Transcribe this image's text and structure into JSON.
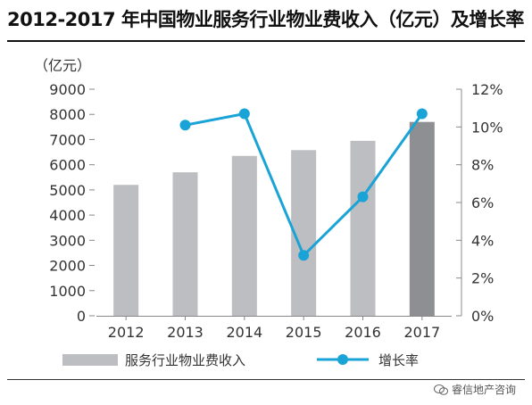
{
  "title": "2012-2017 年中国物业服务行业物业费收入（亿元）及增长率",
  "watermark": "睿信地产咨询",
  "chart_data": {
    "type": "bar",
    "categories": [
      "2012",
      "2013",
      "2014",
      "2015",
      "2016",
      "2017"
    ],
    "y_unit_label": "（亿元）",
    "ylim": [
      0,
      9000
    ],
    "yticks": [
      "0",
      "1000",
      "2000",
      "3000",
      "4000",
      "5000",
      "6000",
      "7000",
      "8000",
      "9000"
    ],
    "y2lim": [
      0,
      12
    ],
    "y2ticks": [
      "0%",
      "2%",
      "4%",
      "6%",
      "8%",
      "10%",
      "12%"
    ],
    "series": [
      {
        "name": "服务行业物业费收入",
        "type": "bar",
        "values": [
          5200,
          5700,
          6350,
          6580,
          6950,
          7700
        ],
        "color": "#bdbec1",
        "highlight_color": "#8e8f92",
        "highlight_index": 5
      },
      {
        "name": "增长率",
        "type": "line",
        "axis": "right",
        "values": [
          null,
          10.1,
          10.7,
          3.2,
          6.3,
          10.7
        ],
        "color": "#1aa3d6"
      }
    ],
    "legend_position": "bottom",
    "grid": false
  }
}
